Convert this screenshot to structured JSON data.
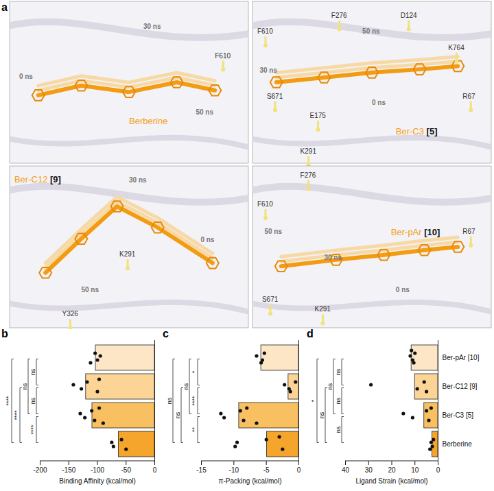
{
  "figure": {
    "panel_label": "a",
    "panels": [
      {
        "ligand": "Berberine",
        "time_labels": [
          "0 ns",
          "30 ns",
          "50 ns"
        ],
        "residues": [
          "F610"
        ]
      },
      {
        "ligand": "Ber-C3 [5]",
        "time_labels": [
          "0 ns",
          "30 ns",
          "50 ns"
        ],
        "residues": [
          "F610",
          "F276",
          "D124",
          "K764",
          "R67",
          "S671",
          "E175",
          "K291"
        ]
      },
      {
        "ligand": "Ber-C12 [9]",
        "time_labels": [
          "0 ns",
          "30 ns",
          "50 ns"
        ],
        "residues": [
          "K291",
          "Y326"
        ]
      },
      {
        "ligand": "Ber-pAr [10]",
        "time_labels": [
          "0 ns",
          "30 ns",
          "50 ns"
        ],
        "residues": [
          "F276",
          "F610",
          "R67",
          "S671",
          "K291"
        ]
      }
    ]
  },
  "chart_data": [
    {
      "type": "bar",
      "panel_label": "b",
      "orientation": "horizontal",
      "x_label": "Binding Affinity (kcal/mol)",
      "categories": [
        "Ber-pAr [10]",
        "Ber-C12 [9]",
        "Ber-C3 [5]",
        "Berberine"
      ],
      "values": [
        -103,
        -120,
        -109,
        -63
      ],
      "points": [
        [
          -95,
          -100,
          -104,
          -112
        ],
        [
          -142,
          -128,
          -118,
          -100,
          -97
        ],
        [
          -130,
          -122,
          -110,
          -105,
          -97,
          -90
        ],
        [
          -75,
          -72,
          -58,
          -50
        ]
      ],
      "colors": [
        "#fde6c6",
        "#fcd596",
        "#f9c062",
        "#f5a52c"
      ],
      "xlim": [
        -200,
        0
      ],
      "xticks": [
        -200,
        -150,
        -100,
        -50,
        0
      ],
      "tick_labels": "x",
      "significance": [
        {
          "from": "Ber-pAr [10]",
          "to": "Ber-C12 [9]",
          "label": "ns"
        },
        {
          "from": "Ber-C12 [9]",
          "to": "Ber-C3 [5]",
          "label": "ns"
        },
        {
          "from": "Ber-C3 [5]",
          "to": "Berberine",
          "label": "****"
        },
        {
          "from": "Ber-pAr [10]",
          "to": "Ber-C3 [5]",
          "label": "ns"
        },
        {
          "from": "Ber-C12 [9]",
          "to": "Berberine",
          "label": "****"
        },
        {
          "from": "Ber-pAr [10]",
          "to": "Berberine",
          "label": "****"
        }
      ]
    },
    {
      "type": "bar",
      "panel_label": "c",
      "orientation": "horizontal",
      "x_label": "π-Packing (kcal/mol)",
      "categories": [
        "Ber-pAr [10]",
        "Ber-C12 [9]",
        "Ber-C3 [5]",
        "Berberine"
      ],
      "values": [
        -5.8,
        -1.6,
        -9.2,
        -4.9
      ],
      "points": [
        [
          -6.5,
          -5.6,
          -5.3,
          -5.8
        ],
        [
          -2.2,
          -1.5,
          -0.5,
          -1.3
        ],
        [
          -12,
          -11.5,
          -9,
          -8.5,
          -8,
          -6.5
        ],
        [
          -9.5,
          -9.8,
          -5,
          -2.5,
          -3
        ]
      ],
      "colors": [
        "#fde6c6",
        "#fcd596",
        "#f9c062",
        "#f5a52c"
      ],
      "xlim": [
        -15,
        0
      ],
      "xticks": [
        -15,
        -10,
        -5,
        0
      ],
      "tick_labels": "x",
      "significance": [
        {
          "from": "Ber-pAr [10]",
          "to": "Ber-C12 [9]",
          "label": "*"
        },
        {
          "from": "Ber-C12 [9]",
          "to": "Ber-C3 [5]",
          "label": "****"
        },
        {
          "from": "Ber-C3 [5]",
          "to": "Berberine",
          "label": "**"
        },
        {
          "from": "Ber-pAr [10]",
          "to": "Ber-C3 [5]",
          "label": "ns"
        },
        {
          "from": "Ber-C12 [9]",
          "to": "Berberine",
          "label": "ns"
        },
        {
          "from": "Ber-pAr [10]",
          "to": "Berberine",
          "label": "ns"
        }
      ]
    },
    {
      "type": "bar",
      "panel_label": "d",
      "orientation": "horizontal",
      "x_label": "Ligand Strain (kcal/mol)",
      "categories": [
        "Ber-pAr [10]",
        "Ber-C12 [9]",
        "Ber-C3 [5]",
        "Berberine"
      ],
      "values": [
        11.5,
        10,
        6,
        2.5
      ],
      "points": [
        [
          12,
          11,
          10,
          10.5,
          11.5
        ],
        [
          29,
          9,
          6,
          5
        ],
        [
          15,
          11,
          5,
          4,
          3
        ],
        [
          3,
          2.5,
          2,
          3.5
        ]
      ],
      "colors": [
        "#fde6c6",
        "#fcd596",
        "#f9c062",
        "#f5a52c"
      ],
      "xlim": [
        40,
        0
      ],
      "xticks": [
        40,
        30,
        20,
        10,
        0
      ],
      "significance": [
        {
          "from": "Ber-pAr [10]",
          "to": "Ber-C12 [9]",
          "label": "ns"
        },
        {
          "from": "Ber-C12 [9]",
          "to": "Ber-C3 [5]",
          "label": "ns"
        },
        {
          "from": "Ber-C3 [5]",
          "to": "Berberine",
          "label": "ns"
        },
        {
          "from": "Ber-pAr [10]",
          "to": "Ber-C3 [5]",
          "label": "ns"
        },
        {
          "from": "Ber-C12 [9]",
          "to": "Berberine",
          "label": "ns"
        },
        {
          "from": "Ber-pAr [10]",
          "to": "Berberine",
          "label": "*"
        }
      ]
    }
  ]
}
